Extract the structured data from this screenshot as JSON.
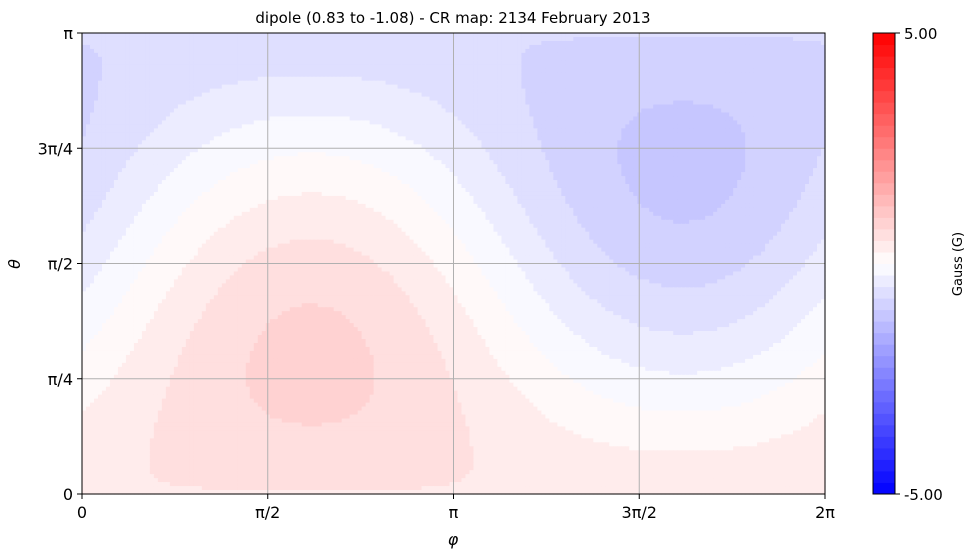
{
  "chart_data": {
    "type": "heatmap",
    "title": "dipole (0.83 to -1.08) - CR map: 2134 February 2013",
    "xlabel": "φ",
    "ylabel": "θ",
    "xlim": [
      0,
      6.283185
    ],
    "ylim": [
      0,
      3.141593
    ],
    "x_ticks": [
      {
        "value": 0,
        "label": "0"
      },
      {
        "value": 1.570796,
        "label": "π/2"
      },
      {
        "value": 3.141593,
        "label": "π"
      },
      {
        "value": 4.712389,
        "label": "3π/2"
      },
      {
        "value": 6.283185,
        "label": "2π"
      }
    ],
    "y_ticks": [
      {
        "value": 0,
        "label": "0"
      },
      {
        "value": 0.785398,
        "label": "π/4"
      },
      {
        "value": 1.570796,
        "label": "π/2"
      },
      {
        "value": 2.356194,
        "label": "3π/4"
      },
      {
        "value": 3.141593,
        "label": "π"
      }
    ],
    "grid": true,
    "field_model": {
      "type": "dipole",
      "max": 0.83,
      "min": -1.08,
      "positive_pole_phi": 1.97,
      "positive_pole_theta": 0.91,
      "negative_pole_phi": 5.04,
      "negative_pole_theta": 2.29
    },
    "colorbar": {
      "label": "Gauss (G)",
      "min": -5.0,
      "max": 5.0,
      "min_label": "-5.00",
      "max_label": "5.00",
      "colormap": "bwr",
      "levels": 40
    },
    "colors": {
      "positive": "#ff0000",
      "neutral": "#ffffff",
      "negative": "#0000ff",
      "grid": "#b0b0b0"
    }
  }
}
